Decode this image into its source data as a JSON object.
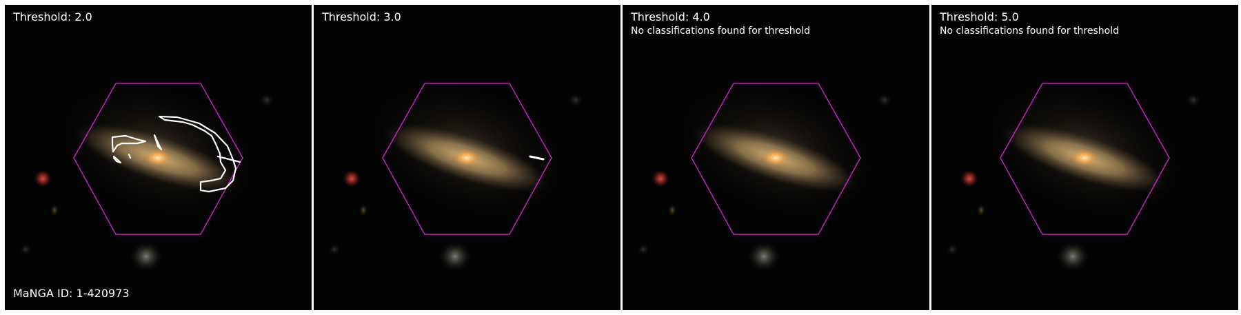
{
  "manga_id_label": "MaNGA ID: 1-420973",
  "colors": {
    "background": "#030303",
    "hexagon": "#c81ec8",
    "contour": "#ffffff",
    "galaxy_core": "#ffcc80",
    "galaxy_disk": "#b89a66"
  },
  "panels": [
    {
      "title": "Threshold: 2.0",
      "note": ""
    },
    {
      "title": "Threshold: 3.0",
      "note": ""
    },
    {
      "title": "Threshold: 4.0",
      "note": "No classifications found for threshold"
    },
    {
      "title": "Threshold: 5.0",
      "note": "No classifications found for threshold"
    }
  ]
}
